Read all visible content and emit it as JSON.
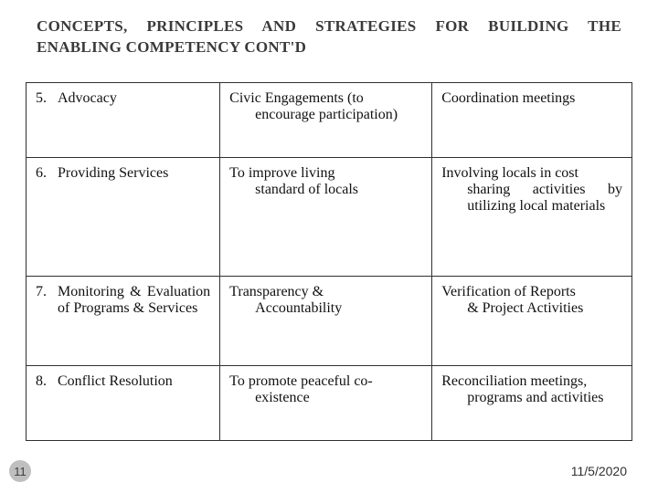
{
  "title_line1": "CONCEPTS, PRINCIPLES AND STRATEGIES FOR BUILDING THE",
  "title_line2": "ENABLING COMPETENCY CONT'D",
  "rows": [
    {
      "num": "5.",
      "label": "Advocacy",
      "col2_lead": "Civic Engagements (to",
      "col2_rest": "encourage participation)",
      "col3": "Coordination meetings"
    },
    {
      "num": "6.",
      "label": "Providing Services",
      "col2_lead": "To improve living",
      "col2_rest": "standard of locals",
      "col3_lead": "Involving locals in cost",
      "col3_rest": "sharing activities by utilizing local materials"
    },
    {
      "num": "7.",
      "label": "Monitoring & Evaluation of Programs & Services",
      "col2_lead": "Transparency &",
      "col2_rest": "Accountability",
      "col3_lead": "Verification of Reports",
      "col3_rest": "& Project Activities"
    },
    {
      "num": "8.",
      "label": "Conflict Resolution",
      "col2_lead": "To promote peaceful co-",
      "col2_rest": "existence",
      "col3_lead": "Reconciliation meetings,",
      "col3_rest": "programs and activities"
    }
  ],
  "page_number": "11",
  "date": "11/5/2020",
  "colors": {
    "title": "#3a3a3a",
    "border": "#303030",
    "text": "#111111",
    "badge_bg": "#bfbfbf",
    "badge_text": "#404040",
    "background": "#ffffff"
  }
}
